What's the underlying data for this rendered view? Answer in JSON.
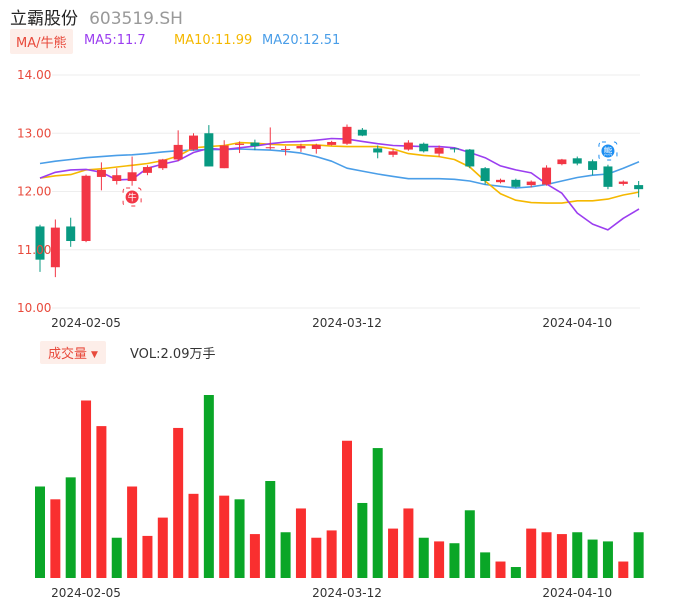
{
  "stock": {
    "name": "立霸股份",
    "code": "603519.SH"
  },
  "ma_legend": {
    "label": "MA/牛熊",
    "ma5": "MA5:11.7",
    "ma10": "MA10:11.99",
    "ma20": "MA20:12.51"
  },
  "volume_legend": {
    "label": "成交量",
    "value": "VOL:2.09万手"
  },
  "colors": {
    "up": "#f23645",
    "down": "#089981",
    "up_vol": "#f92f2f",
    "down_vol": "#0aa627",
    "ma5": "#9b3ef0",
    "ma10": "#f5b800",
    "ma20": "#4a9ee8",
    "axis_text": "#e84a3c",
    "grid": "#eeeeee"
  },
  "icons": {
    "bull_marker": "bull-icon",
    "bear_marker": "bear-icon",
    "vol_dropdown": "triangle-down-icon"
  },
  "chart_data": [
    {
      "type": "candlestick",
      "ylim": [
        10.0,
        14.0
      ],
      "yticks": [
        "14.00",
        "13.00",
        "12.00",
        "11.00",
        "10.00"
      ],
      "xticks": [
        {
          "index": 3,
          "label": "2024-02-05"
        },
        {
          "index": 20,
          "label": "2024-03-12"
        },
        {
          "index": 35,
          "label": "2024-04-10"
        }
      ],
      "grid": true,
      "candles": [
        {
          "o": 11.4,
          "c": 10.83,
          "h": 11.43,
          "l": 10.62
        },
        {
          "o": 10.7,
          "c": 11.38,
          "h": 11.52,
          "l": 10.53
        },
        {
          "o": 11.4,
          "c": 11.15,
          "h": 11.55,
          "l": 11.05
        },
        {
          "o": 11.15,
          "c": 12.27,
          "h": 12.29,
          "l": 11.13
        },
        {
          "o": 12.25,
          "c": 12.37,
          "h": 12.5,
          "l": 12.02
        },
        {
          "o": 12.18,
          "c": 12.28,
          "h": 12.4,
          "l": 12.12
        },
        {
          "o": 12.18,
          "c": 12.33,
          "h": 12.6,
          "l": 12.1
        },
        {
          "o": 12.32,
          "c": 12.42,
          "h": 12.45,
          "l": 12.28
        },
        {
          "o": 12.4,
          "c": 12.55,
          "h": 12.56,
          "l": 12.37
        },
        {
          "o": 12.55,
          "c": 12.8,
          "h": 13.05,
          "l": 12.52
        },
        {
          "o": 12.72,
          "c": 12.96,
          "h": 13.0,
          "l": 12.7
        },
        {
          "o": 13.0,
          "c": 12.43,
          "h": 13.14,
          "l": 12.43
        },
        {
          "o": 12.4,
          "c": 12.79,
          "h": 12.88,
          "l": 12.4
        },
        {
          "o": 12.8,
          "c": 12.82,
          "h": 12.86,
          "l": 12.66
        },
        {
          "o": 12.84,
          "c": 12.78,
          "h": 12.89,
          "l": 12.71
        },
        {
          "o": 12.75,
          "c": 12.76,
          "h": 13.1,
          "l": 12.72
        },
        {
          "o": 12.73,
          "c": 12.73,
          "h": 12.78,
          "l": 12.62
        },
        {
          "o": 12.74,
          "c": 12.78,
          "h": 12.82,
          "l": 12.68
        },
        {
          "o": 12.73,
          "c": 12.8,
          "h": 12.82,
          "l": 12.65
        },
        {
          "o": 12.8,
          "c": 12.85,
          "h": 12.87,
          "l": 12.79
        },
        {
          "o": 12.82,
          "c": 13.11,
          "h": 13.15,
          "l": 12.8
        },
        {
          "o": 13.06,
          "c": 12.96,
          "h": 13.09,
          "l": 12.95
        },
        {
          "o": 12.74,
          "c": 12.67,
          "h": 12.79,
          "l": 12.57
        },
        {
          "o": 12.63,
          "c": 12.69,
          "h": 12.73,
          "l": 12.59
        },
        {
          "o": 12.72,
          "c": 12.84,
          "h": 12.88,
          "l": 12.7
        },
        {
          "o": 12.82,
          "c": 12.69,
          "h": 12.84,
          "l": 12.67
        },
        {
          "o": 12.65,
          "c": 12.75,
          "h": 12.79,
          "l": 12.6
        },
        {
          "o": 12.74,
          "c": 12.73,
          "h": 12.75,
          "l": 12.67
        },
        {
          "o": 12.72,
          "c": 12.43,
          "h": 12.73,
          "l": 12.4
        },
        {
          "o": 12.4,
          "c": 12.18,
          "h": 12.42,
          "l": 12.12
        },
        {
          "o": 12.16,
          "c": 12.2,
          "h": 12.22,
          "l": 12.14
        },
        {
          "o": 12.2,
          "c": 12.08,
          "h": 12.22,
          "l": 12.06
        },
        {
          "o": 12.11,
          "c": 12.17,
          "h": 12.19,
          "l": 12.07
        },
        {
          "o": 12.12,
          "c": 12.41,
          "h": 12.45,
          "l": 12.1
        },
        {
          "o": 12.47,
          "c": 12.55,
          "h": 12.56,
          "l": 12.45
        },
        {
          "o": 12.57,
          "c": 12.48,
          "h": 12.6,
          "l": 12.45
        },
        {
          "o": 12.52,
          "c": 12.37,
          "h": 12.55,
          "l": 12.28
        },
        {
          "o": 12.43,
          "c": 12.08,
          "h": 12.46,
          "l": 12.04
        },
        {
          "o": 12.13,
          "c": 12.17,
          "h": 12.19,
          "l": 12.1
        },
        {
          "o": 12.11,
          "c": 12.04,
          "h": 12.18,
          "l": 11.9
        }
      ],
      "ma5": [
        12.23,
        12.33,
        12.37,
        12.38,
        12.33,
        12.2,
        12.21,
        12.4,
        12.47,
        12.53,
        12.67,
        12.74,
        12.72,
        12.75,
        12.78,
        12.82,
        12.85,
        12.86,
        12.88,
        12.91,
        12.9,
        12.86,
        12.82,
        12.79,
        12.78,
        12.77,
        12.77,
        12.75,
        12.67,
        12.58,
        12.44,
        12.37,
        12.32,
        12.13,
        11.97,
        11.63,
        11.44,
        11.34,
        11.54,
        11.7
      ],
      "ma10": [
        12.23,
        12.27,
        12.29,
        12.37,
        12.39,
        12.42,
        12.45,
        12.48,
        12.53,
        12.61,
        12.75,
        12.77,
        12.79,
        12.84,
        12.83,
        12.81,
        12.8,
        12.8,
        12.8,
        12.78,
        12.77,
        12.77,
        12.77,
        12.73,
        12.65,
        12.62,
        12.6,
        12.55,
        12.42,
        12.18,
        11.96,
        11.85,
        11.81,
        11.8,
        11.8,
        11.84,
        11.84,
        11.87,
        11.94,
        11.99
      ],
      "ma20": [
        12.48,
        12.52,
        12.55,
        12.58,
        12.6,
        12.62,
        12.63,
        12.65,
        12.68,
        12.7,
        12.71,
        12.72,
        12.72,
        12.73,
        12.72,
        12.71,
        12.69,
        12.66,
        12.6,
        12.52,
        12.4,
        12.35,
        12.3,
        12.26,
        12.22,
        12.22,
        12.22,
        12.21,
        12.18,
        12.12,
        12.09,
        12.06,
        12.08,
        12.12,
        12.18,
        12.24,
        12.28,
        12.3,
        12.4,
        12.51
      ]
    },
    {
      "type": "bar",
      "series_name": "成交量",
      "ylim": [
        0,
        100
      ],
      "xticks": [
        {
          "index": 3,
          "label": "2024-02-05"
        },
        {
          "index": 20,
          "label": "2024-03-12"
        },
        {
          "index": 35,
          "label": "2024-04-10"
        }
      ],
      "values": [
        50,
        43,
        55,
        97,
        83,
        22,
        50,
        23,
        33,
        82,
        46,
        100,
        45,
        43,
        24,
        53,
        25,
        38,
        22,
        26,
        75,
        41,
        71,
        27,
        38,
        22,
        20,
        19,
        37,
        14,
        9,
        6,
        27,
        25,
        24,
        25,
        21,
        20,
        9,
        25
      ],
      "up": [
        false,
        true,
        false,
        true,
        true,
        false,
        true,
        true,
        true,
        true,
        true,
        false,
        true,
        false,
        true,
        false,
        false,
        true,
        true,
        true,
        true,
        false,
        false,
        true,
        true,
        false,
        true,
        false,
        false,
        false,
        true,
        false,
        true,
        true,
        true,
        false,
        false,
        false,
        true,
        false
      ]
    }
  ]
}
